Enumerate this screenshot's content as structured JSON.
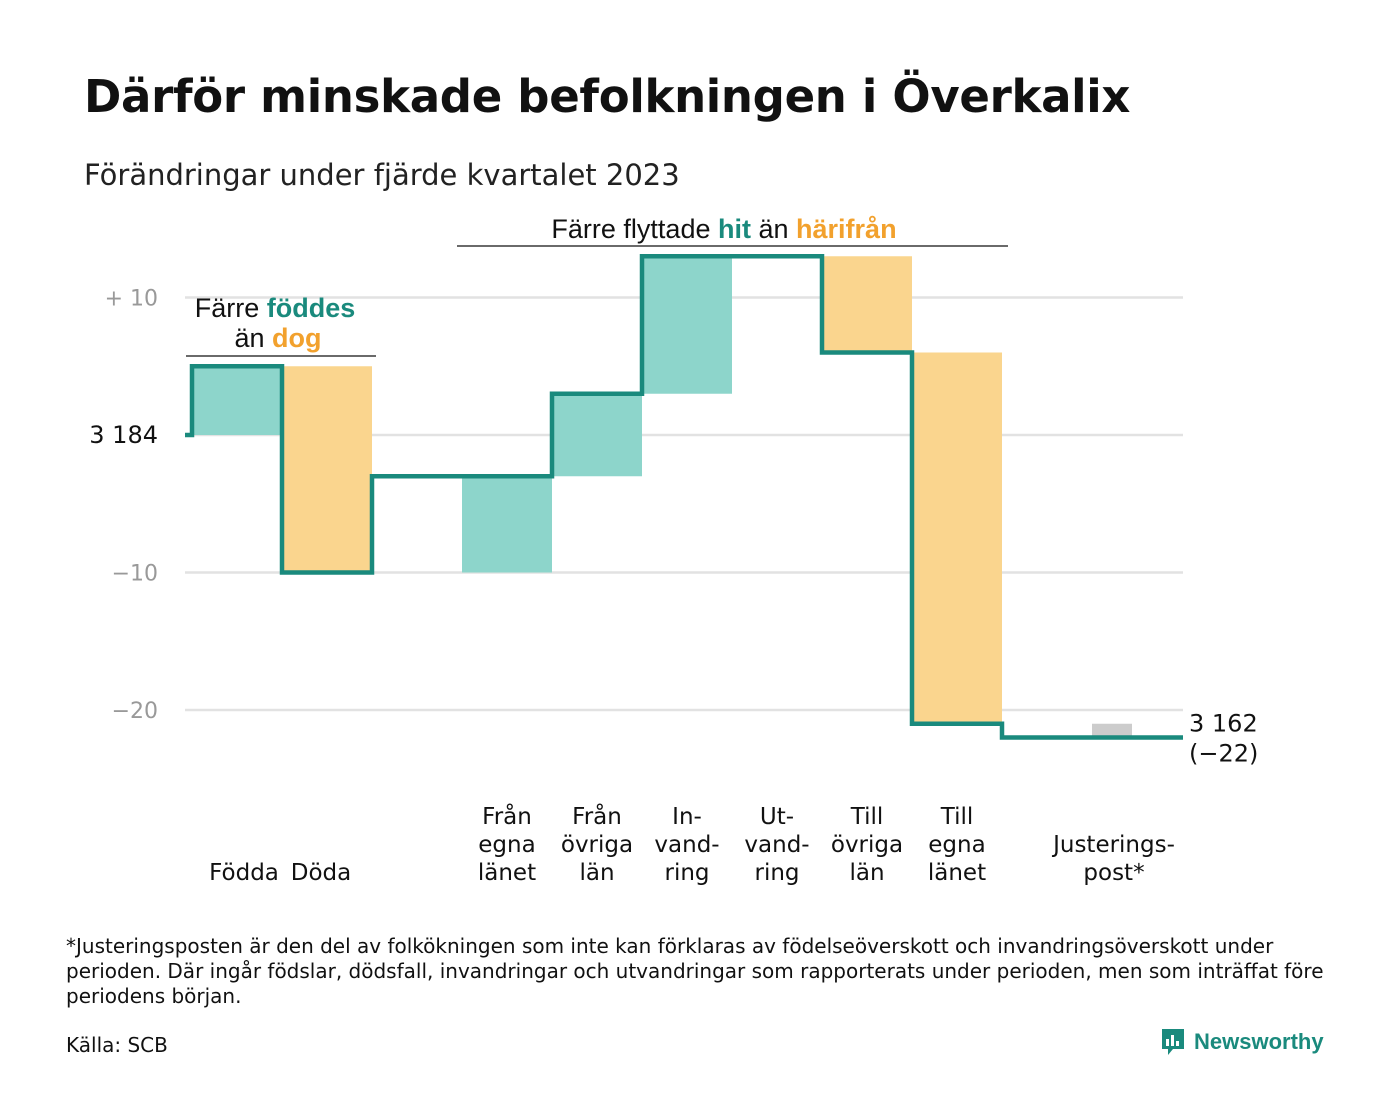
{
  "title": "Därför minskade befolkningen i Överkalix",
  "subtitle": "Förändringar under fjärde kvartalet 2023",
  "chart_data": {
    "type": "bar",
    "variant": "waterfall",
    "start_value": 3184,
    "end_value": 3162,
    "net_change": -22,
    "end_label": "3 162",
    "end_change_label": "(−22)",
    "baseline_label": "3 184",
    "y_ticks": [
      {
        "value": 10,
        "label": "+  10"
      },
      {
        "value": -10,
        "label": "−10"
      },
      {
        "value": -20,
        "label": "−20"
      }
    ],
    "ylim": [
      -22,
      12
    ],
    "grid": true,
    "steps": [
      {
        "category": "Födda",
        "label_lines": [
          "Födda"
        ],
        "value": 5,
        "kind": "positive"
      },
      {
        "category": "Döda",
        "label_lines": [
          "Döda"
        ],
        "value": -15,
        "kind": "negative"
      },
      {
        "category": "Från egna länet",
        "label_lines": [
          "Från",
          "egna",
          "länet"
        ],
        "value": 7,
        "kind": "positive"
      },
      {
        "category": "Från övriga län",
        "label_lines": [
          "Från",
          "övriga",
          "län"
        ],
        "value": 6,
        "kind": "positive"
      },
      {
        "category": "Invandring",
        "label_lines": [
          "In-",
          "vand-",
          "ring"
        ],
        "value": 10,
        "kind": "positive"
      },
      {
        "category": "Utvandring",
        "label_lines": [
          "Ut-",
          "vand-",
          "ring"
        ],
        "value": 0,
        "kind": "negative"
      },
      {
        "category": "Till övriga län",
        "label_lines": [
          "Till",
          "övriga",
          "län"
        ],
        "value": -7,
        "kind": "negative"
      },
      {
        "category": "Till egna länet",
        "label_lines": [
          "Till",
          "egna",
          "länet"
        ],
        "value": -27,
        "kind": "negative"
      },
      {
        "category": "Justeringspost*",
        "label_lines": [
          "Justerings-",
          "post*"
        ],
        "value": -1,
        "kind": "adjustment"
      }
    ],
    "annotations": {
      "births": {
        "text_before": "Färre",
        "highlight1": "föddes",
        "text_middle": "än",
        "highlight2": "dog"
      },
      "migration": {
        "text_before": "Färre flyttade",
        "highlight1": "hit",
        "text_middle": "än",
        "highlight2": "härifrån"
      }
    },
    "colors": {
      "positive": "#8dd5cb",
      "negative": "#fad58e",
      "adjustment": "#cccccc",
      "line": "#1a8a7d",
      "grid": "#e2e2e2",
      "highlight_teal": "#1a8a7d",
      "highlight_orange": "#f2a12d"
    }
  },
  "footnote": "*Justeringsposten är den del av folkökningen som inte kan förklaras av födelseöverskott och invandringsöverskott under perioden. Där ingår födslar, dödsfall, invandringar och utvandringar som rapporterats under perioden, men som inträffat före periodens början.",
  "source": "Källa: SCB",
  "brand": {
    "name": "Newsworthy",
    "icon": "bar-chart-speech-bubble-icon"
  }
}
